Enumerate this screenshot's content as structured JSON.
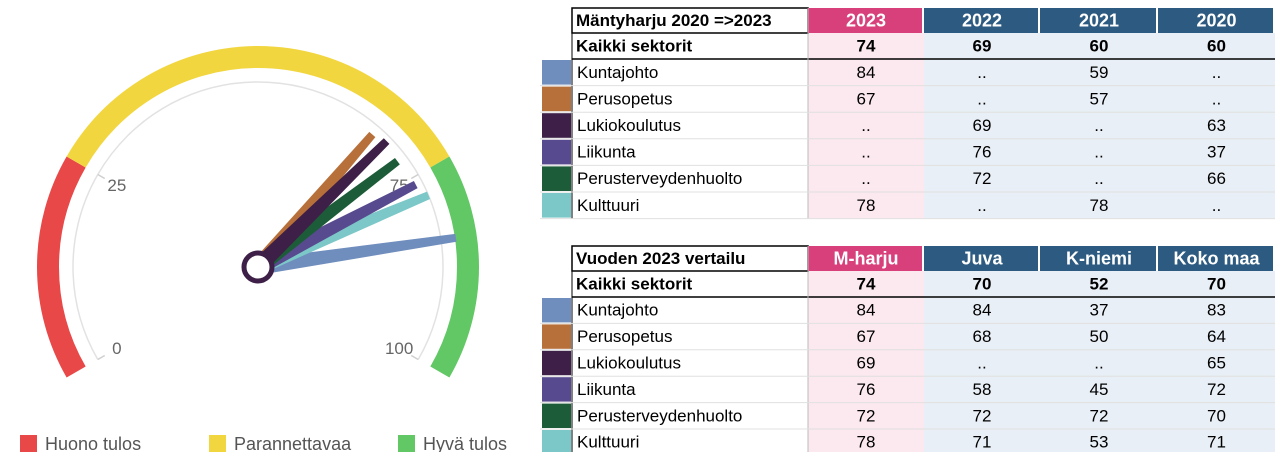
{
  "chart_data": {
    "type": "gauge",
    "ylim": [
      0,
      100
    ],
    "yticks": [
      0,
      25,
      75,
      100
    ],
    "bands": [
      {
        "name": "Huono tulos",
        "color": "#e84848",
        "range": [
          0,
          25
        ]
      },
      {
        "name": "Parannettavaa",
        "color": "#f2d640",
        "range": [
          25,
          75
        ]
      },
      {
        "name": "Hyvä tulos",
        "color": "#62c765",
        "range": [
          75,
          100
        ]
      }
    ]
  },
  "tables": [
    {
      "title": "Mäntyharju 2020 =>2023",
      "columns": [
        "2023",
        "2022",
        "2021",
        "2020"
      ],
      "total": {
        "label": "Kaikki sektorit",
        "values": [
          74,
          69,
          60,
          60
        ]
      },
      "rows": [
        {
          "label": "Kuntajohto",
          "color": "#6f8dbd",
          "values": [
            84,
            "..",
            59,
            ".."
          ]
        },
        {
          "label": "Perusopetus",
          "color": "#b8703a",
          "values": [
            67,
            "..",
            57,
            ".."
          ]
        },
        {
          "label": "Lukiokoulutus",
          "color": "#3d1f47",
          "values": [
            "..",
            69,
            "..",
            63
          ]
        },
        {
          "label": "Liikunta",
          "color": "#574a8e",
          "values": [
            "..",
            76,
            "..",
            37
          ]
        },
        {
          "label": "Perusterveydenhuolto",
          "color": "#1d5c38",
          "values": [
            "..",
            72,
            "..",
            66
          ]
        },
        {
          "label": "Kulttuuri",
          "color": "#7cc7c7",
          "values": [
            78,
            "..",
            78,
            ".."
          ]
        }
      ]
    },
    {
      "title": "Vuoden 2023 vertailu",
      "columns": [
        "M-harju",
        "Juva",
        "K-niemi",
        "Koko maa"
      ],
      "total": {
        "label": "Kaikki sektorit",
        "values": [
          74,
          70,
          52,
          70
        ]
      },
      "rows": [
        {
          "label": "Kuntajohto",
          "color": "#6f8dbd",
          "values": [
            84,
            84,
            37,
            83
          ]
        },
        {
          "label": "Perusopetus",
          "color": "#b8703a",
          "values": [
            67,
            68,
            50,
            64
          ]
        },
        {
          "label": "Lukiokoulutus",
          "color": "#3d1f47",
          "values": [
            69,
            "..",
            "..",
            65
          ]
        },
        {
          "label": "Liikunta",
          "color": "#574a8e",
          "values": [
            76,
            58,
            45,
            72
          ]
        },
        {
          "label": "Perusterveydenhuolto",
          "color": "#1d5c38",
          "values": [
            72,
            72,
            72,
            70
          ]
        },
        {
          "label": "Kulttuuri",
          "color": "#7cc7c7",
          "values": [
            78,
            71,
            53,
            71
          ]
        }
      ]
    }
  ]
}
